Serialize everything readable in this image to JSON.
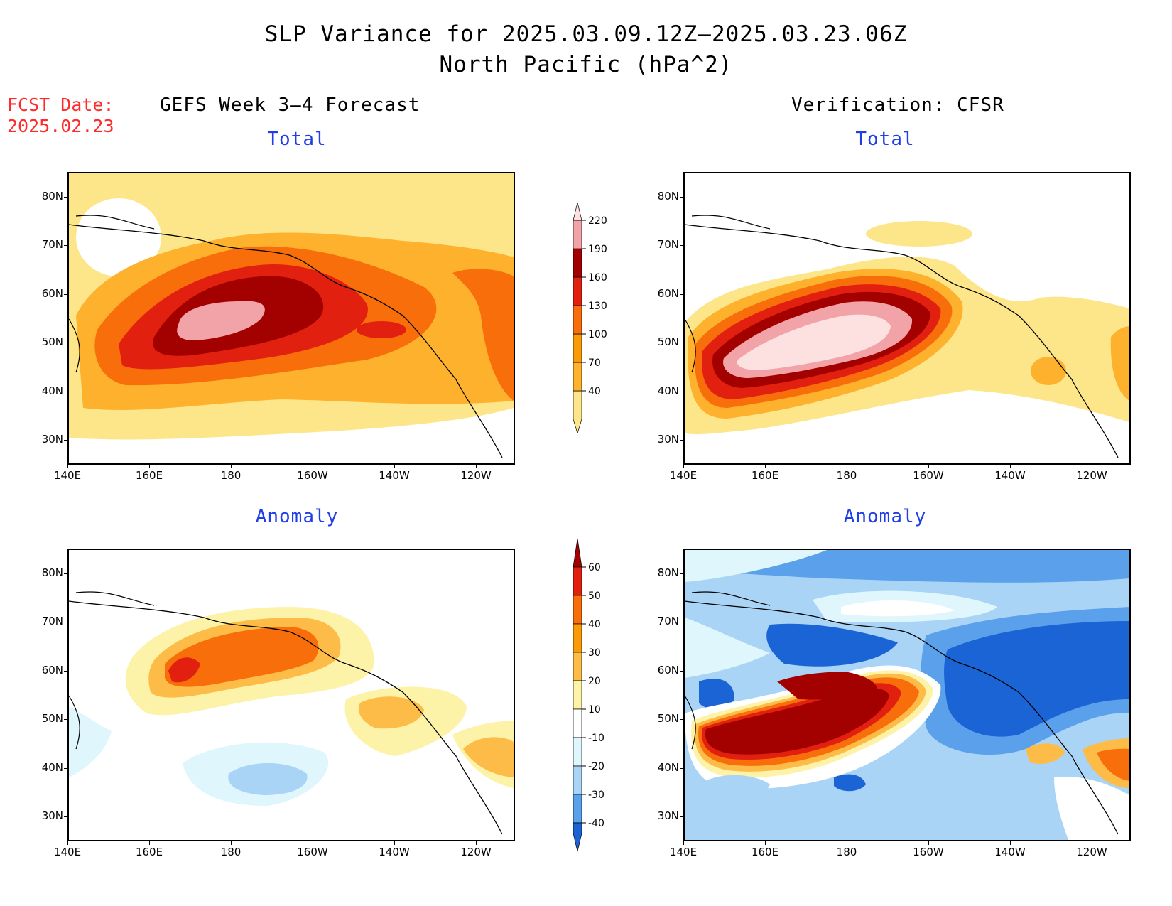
{
  "title": {
    "line1": "SLP Variance for 2025.03.09.12Z–2025.03.23.06Z",
    "line2": "North Pacific (hPa^2)"
  },
  "fcst_date": {
    "line1": "FCST Date:",
    "line2": "2025.02.23"
  },
  "columns": {
    "left": "GEFS Week 3–4 Forecast",
    "right": "Verification: CFSR"
  },
  "panels": {
    "total_label": "Total",
    "anomaly_label": "Anomaly"
  },
  "axes": {
    "lat_labels": [
      "80N",
      "70N",
      "60N",
      "50N",
      "40N",
      "30N"
    ],
    "lon_labels": [
      "140E",
      "160E",
      "180",
      "160W",
      "140W",
      "120W"
    ]
  },
  "colorbars": {
    "total": {
      "levels": [
        "40",
        "70",
        "100",
        "130",
        "160",
        "190",
        "220"
      ],
      "colors": [
        "#fde58a",
        "#fdb12c",
        "#fb9a07",
        "#f86e0b",
        "#e2200f",
        "#a30000",
        "#f1a3a8",
        "#fde0e0"
      ]
    },
    "anomaly": {
      "levels": [
        "60",
        "50",
        "40",
        "30",
        "20",
        "10",
        "-10",
        "-20",
        "-30",
        "-40"
      ],
      "colors": [
        "#a30000",
        "#e2200f",
        "#f86e0b",
        "#fb9a07",
        "#fdbb48",
        "#fdf3a8",
        "#ffffff",
        "#dff6fd",
        "#a9d4f6",
        "#5aa0ea",
        "#1a64d6"
      ]
    }
  },
  "colors": {
    "title_blue": "#1f3de8",
    "fcst_red": "#ff2a2a"
  }
}
